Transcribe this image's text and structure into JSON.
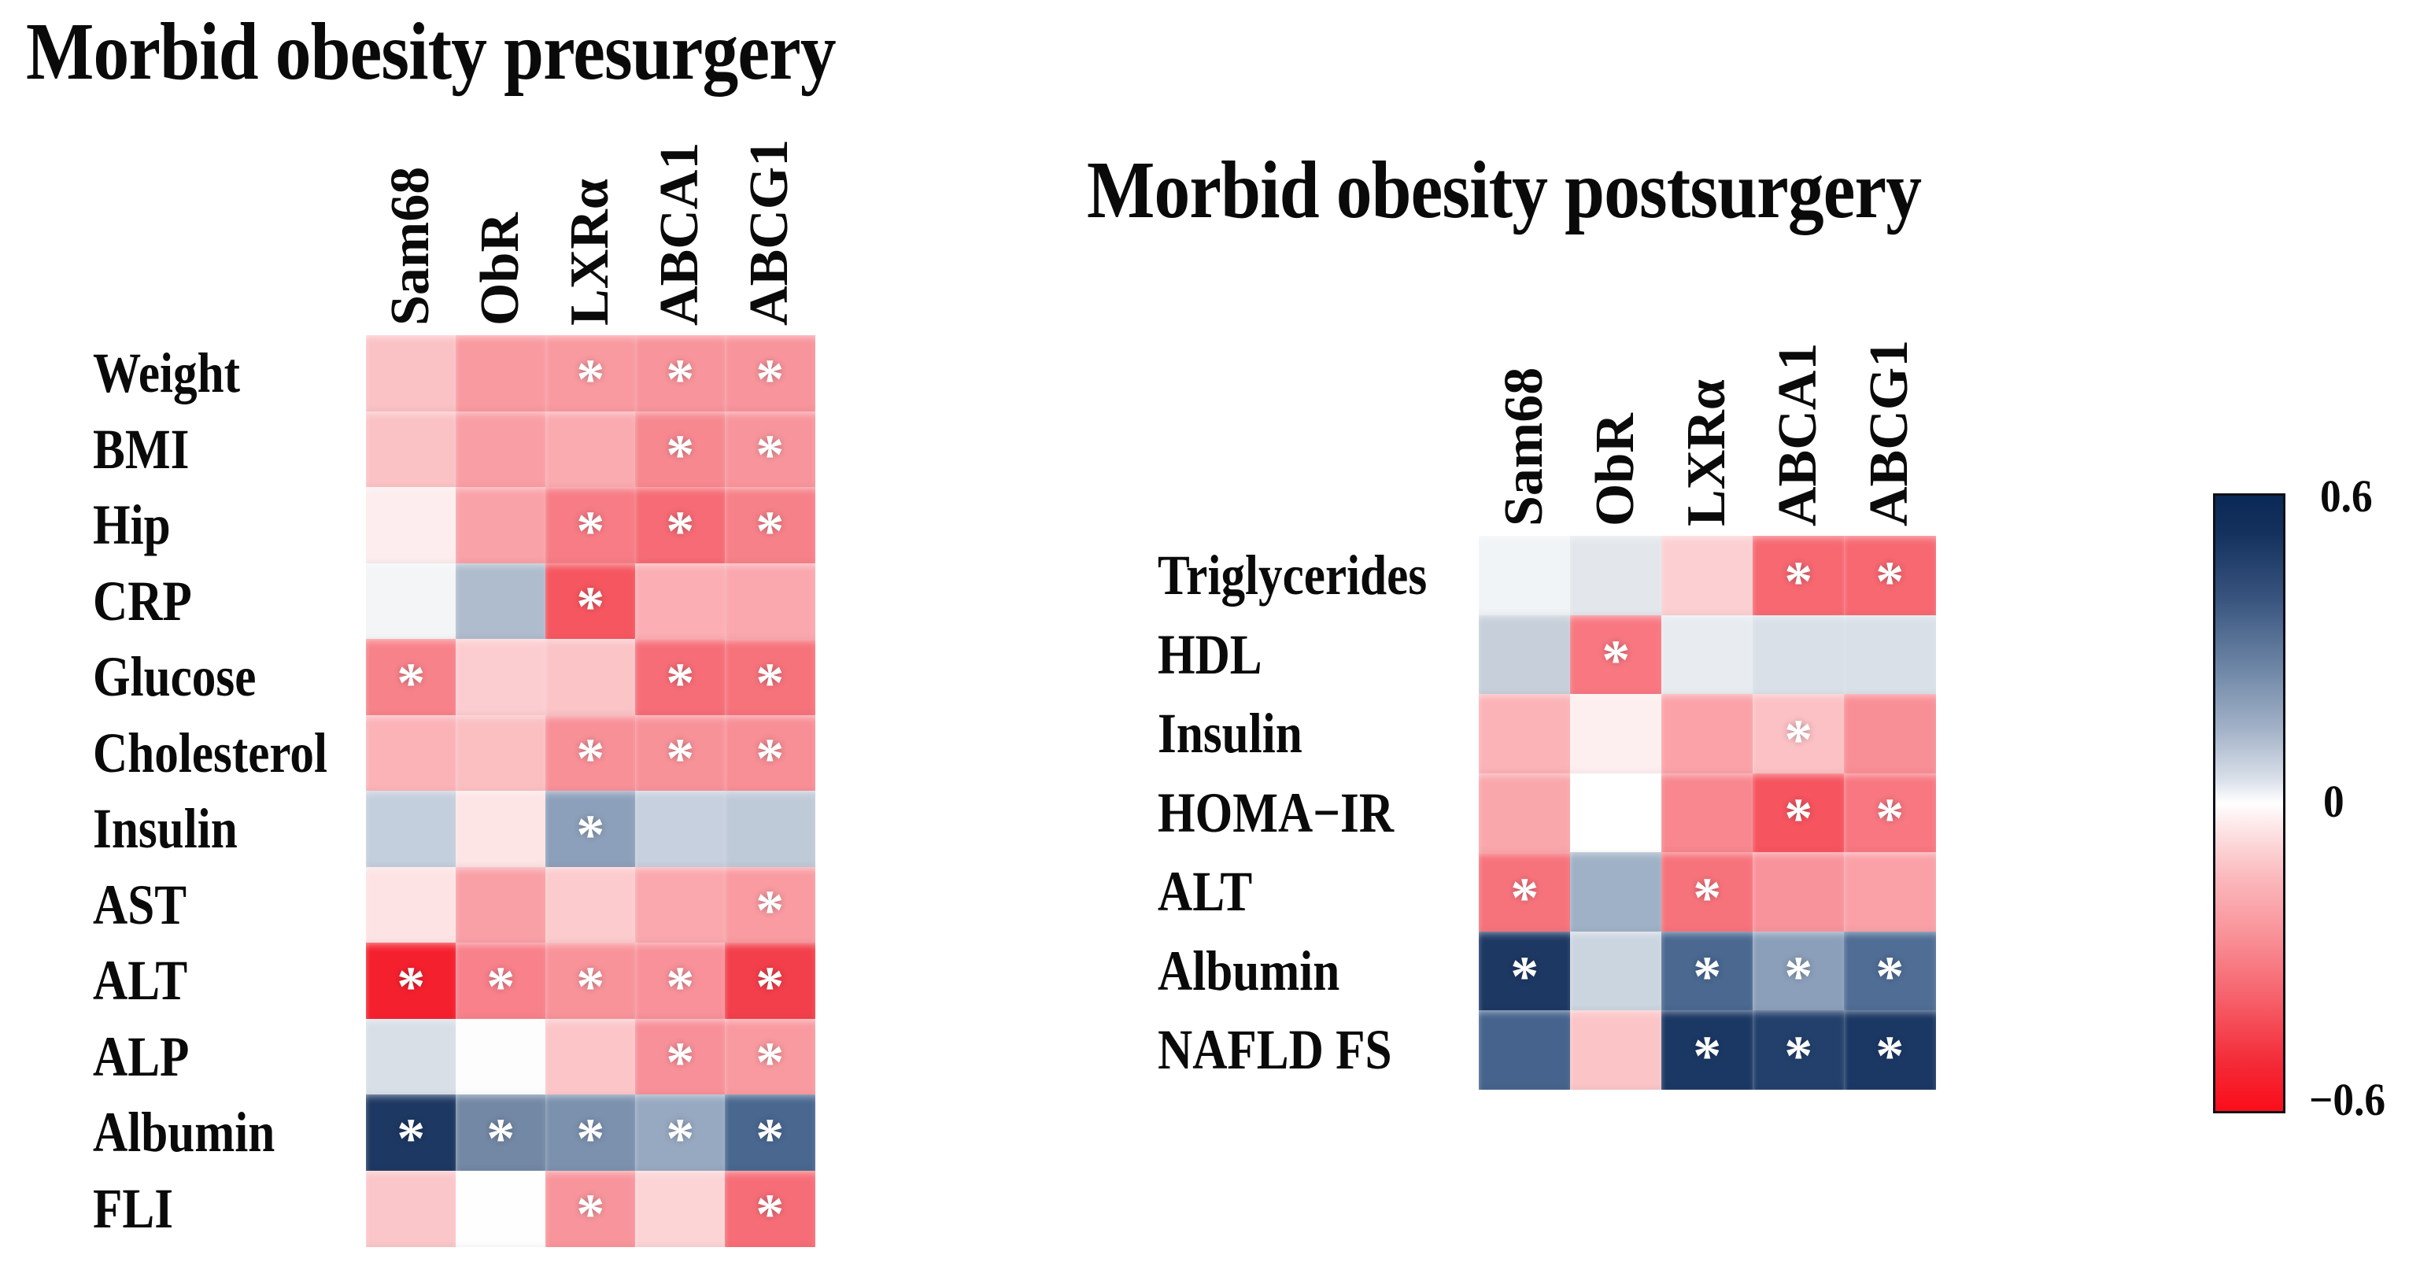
{
  "left_panel": {
    "title": "Morbid obesity presurgery"
  },
  "right_panel": {
    "title": "Morbid obesity postsurgery"
  },
  "colorbar": {
    "max_label": "0.6",
    "zero_label": "0",
    "min_label": "−0.6",
    "top_color": "#0b2956",
    "mid_color": "#ffffff",
    "bottom_color": "#fb0d1a"
  },
  "significance_note": "asterisk marks statistically significant correlation",
  "chart_data": [
    {
      "type": "heatmap",
      "id": "presurgery",
      "title": "Morbid obesity presurgery",
      "columns": [
        "Sam68",
        "ObR",
        "LXRα",
        "ABCA1",
        "ABCG1"
      ],
      "rows": [
        "Weight",
        "BMI",
        "Hip",
        "CRP",
        "Glucose",
        "Cholesterol",
        "Insulin",
        "AST",
        "ALT",
        "ALP",
        "Albumin",
        "FLI"
      ],
      "value_range": [
        -0.6,
        0.6
      ],
      "colormap": "red-white-navy",
      "values": [
        [
          -0.14,
          -0.24,
          -0.24,
          -0.26,
          -0.26
        ],
        [
          -0.14,
          -0.23,
          -0.2,
          -0.3,
          -0.26
        ],
        [
          -0.05,
          -0.22,
          -0.33,
          -0.37,
          -0.31
        ],
        [
          0.03,
          0.2,
          -0.42,
          -0.18,
          -0.2
        ],
        [
          -0.3,
          -0.12,
          -0.14,
          -0.37,
          -0.35
        ],
        [
          -0.18,
          -0.15,
          -0.27,
          -0.26,
          -0.28
        ],
        [
          0.14,
          -0.06,
          0.28,
          0.13,
          0.16
        ],
        [
          -0.07,
          -0.23,
          -0.12,
          -0.21,
          -0.24
        ],
        [
          -0.56,
          -0.31,
          -0.27,
          -0.27,
          -0.49
        ],
        [
          0.09,
          0.01,
          -0.13,
          -0.27,
          -0.24
        ],
        [
          0.55,
          0.33,
          0.31,
          0.24,
          0.43
        ],
        [
          -0.13,
          0.0,
          -0.26,
          -0.1,
          -0.36
        ]
      ],
      "significant": [
        [
          false,
          false,
          true,
          true,
          true
        ],
        [
          false,
          false,
          false,
          true,
          true
        ],
        [
          false,
          false,
          true,
          true,
          true
        ],
        [
          false,
          false,
          true,
          false,
          false
        ],
        [
          true,
          false,
          false,
          true,
          true
        ],
        [
          false,
          false,
          true,
          true,
          true
        ],
        [
          false,
          false,
          true,
          false,
          false
        ],
        [
          false,
          false,
          false,
          false,
          true
        ],
        [
          true,
          true,
          true,
          true,
          true
        ],
        [
          false,
          false,
          false,
          true,
          true
        ],
        [
          true,
          true,
          true,
          true,
          true
        ],
        [
          false,
          false,
          true,
          false,
          true
        ]
      ],
      "cell_colors": [
        [
          "#fbc2c5",
          "#f99aa0",
          "#f99aa0",
          "#f8949b",
          "#f8949b"
        ],
        [
          "#fbc2c5",
          "#f99ea4",
          "#faabb0",
          "#f78890",
          "#f8959c"
        ],
        [
          "#fdedee",
          "#f9a2a8",
          "#f77c85",
          "#f66b75",
          "#f78189"
        ],
        [
          "#f3f5f6",
          "#aebccd",
          "#f6565f",
          "#fbaeb3",
          "#faa8ae"
        ],
        [
          "#f8828a",
          "#fccdd0",
          "#fbc4c7",
          "#f66d77",
          "#f7737c"
        ],
        [
          "#fbb3b8",
          "#fbbfc2",
          "#f89098",
          "#f89299",
          "#f88e96"
        ],
        [
          "#c4cfdd",
          "#fde5e6",
          "#8da0bb",
          "#c6d0de",
          "#bfcad9"
        ],
        [
          "#fde3e4",
          "#f9a0a6",
          "#fccbcd",
          "#faa8ad",
          "#f99ba1"
        ],
        [
          "#f5202e",
          "#f8818b",
          "#f8939a",
          "#f8919a",
          "#f23f4b"
        ],
        [
          "#d8dfe7",
          "#fdfdfe",
          "#fcc6c9",
          "#f89099",
          "#f99aa0"
        ],
        [
          "#1d3863",
          "#7388a5",
          "#7b91ae",
          "#97a9c1",
          "#49678f"
        ],
        [
          "#fbc6c9",
          "#fefefe",
          "#f8959c",
          "#fcd4d6",
          "#f66d77"
        ]
      ]
    },
    {
      "type": "heatmap",
      "id": "postsurgery",
      "title": "Morbid obesity postsurgery",
      "columns": [
        "Sam68",
        "ObR",
        "LXRα",
        "ABCA1",
        "ABCG1"
      ],
      "rows": [
        "Triglycerides",
        "HDL",
        "Insulin",
        "HOMA−IR",
        "ALT",
        "Albumin",
        "NAFLD FS"
      ],
      "value_range": [
        -0.6,
        0.6
      ],
      "colormap": "red-white-navy",
      "values": [
        [
          0.02,
          0.05,
          -0.11,
          -0.37,
          -0.37
        ],
        [
          0.13,
          -0.33,
          0.05,
          0.09,
          0.09
        ],
        [
          -0.17,
          -0.04,
          -0.21,
          -0.14,
          -0.26
        ],
        [
          -0.2,
          0.0,
          -0.29,
          -0.42,
          -0.33
        ],
        [
          -0.35,
          0.22,
          -0.35,
          -0.26,
          -0.22
        ],
        [
          0.55,
          0.12,
          0.42,
          0.28,
          0.4
        ],
        [
          0.44,
          -0.13,
          0.57,
          0.52,
          0.57
        ]
      ],
      "significant": [
        [
          false,
          false,
          false,
          true,
          true
        ],
        [
          false,
          true,
          false,
          false,
          false
        ],
        [
          false,
          false,
          false,
          true,
          false
        ],
        [
          false,
          false,
          false,
          true,
          true
        ],
        [
          true,
          false,
          true,
          false,
          false
        ],
        [
          true,
          false,
          true,
          true,
          true
        ],
        [
          false,
          false,
          true,
          true,
          true
        ]
      ],
      "cell_colors": [
        [
          "#f1f4f6",
          "#e3e7ec",
          "#fcd0d2",
          "#f76871",
          "#f76871"
        ],
        [
          "#c6cfda",
          "#f87781",
          "#e8ecf0",
          "#d9e0e8",
          "#d9e0e8"
        ],
        [
          "#fbb3b7",
          "#fdeff0",
          "#faa2a8",
          "#fcc1c4",
          "#f98f96"
        ],
        [
          "#faa7ac",
          "#ffffff",
          "#f8878f",
          "#f6545f",
          "#f87781"
        ],
        [
          "#f7737c",
          "#9fb1c6",
          "#f7737c",
          "#f9939b",
          "#faa1a7"
        ],
        [
          "#1d3863",
          "#cbd5e0",
          "#4a6890",
          "#8b9fba",
          "#4f6d95"
        ],
        [
          "#45638c",
          "#fbc5c8",
          "#1b3864",
          "#23406c",
          "#1b3864"
        ]
      ]
    }
  ]
}
